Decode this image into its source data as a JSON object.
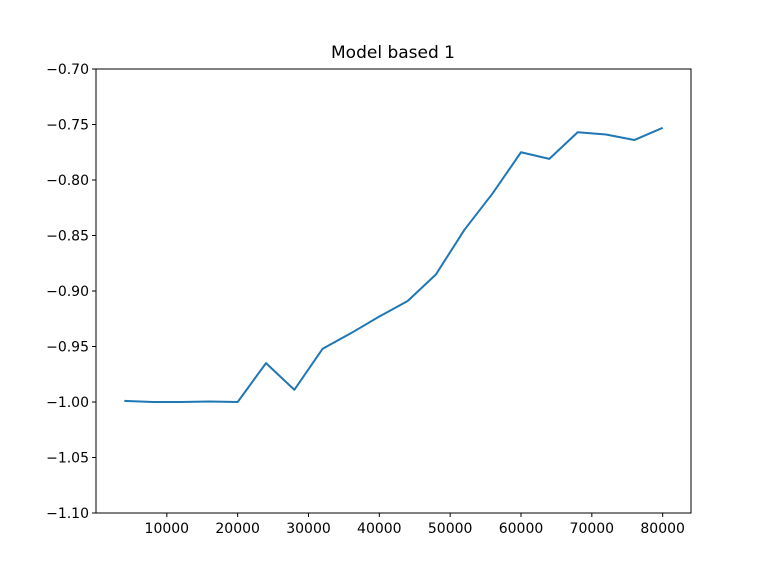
{
  "chart_data": {
    "type": "line",
    "title": "Model based 1",
    "xlabel": "",
    "ylabel": "",
    "xlim": [
      0,
      84000
    ],
    "ylim": [
      -1.1,
      -0.7
    ],
    "grid": false,
    "x_ticks": [
      {
        "value": 10000,
        "label": "10000"
      },
      {
        "value": 20000,
        "label": "20000"
      },
      {
        "value": 30000,
        "label": "30000"
      },
      {
        "value": 40000,
        "label": "40000"
      },
      {
        "value": 50000,
        "label": "50000"
      },
      {
        "value": 60000,
        "label": "60000"
      },
      {
        "value": 70000,
        "label": "70000"
      },
      {
        "value": 80000,
        "label": "80000"
      }
    ],
    "y_ticks": [
      {
        "value": -0.7,
        "label": "−0.70"
      },
      {
        "value": -0.75,
        "label": "−0.75"
      },
      {
        "value": -0.8,
        "label": "−0.80"
      },
      {
        "value": -0.85,
        "label": "−0.85"
      },
      {
        "value": -0.9,
        "label": "−0.90"
      },
      {
        "value": -0.95,
        "label": "−0.95"
      },
      {
        "value": -1.0,
        "label": "−1.00"
      },
      {
        "value": -1.05,
        "label": "−1.05"
      },
      {
        "value": -1.1,
        "label": "−1.10"
      }
    ],
    "series": [
      {
        "color": "#1f77b4",
        "x": [
          4000,
          8000,
          12000,
          16000,
          20000,
          24000,
          28000,
          32000,
          36000,
          40000,
          44000,
          48000,
          52000,
          56000,
          60000,
          64000,
          68000,
          72000,
          76000,
          80000
        ],
        "y": [
          -0.999,
          -1.0,
          -1.0,
          -0.9995,
          -1.0,
          -0.965,
          -0.989,
          -0.952,
          -0.938,
          -0.923,
          -0.909,
          -0.885,
          -0.845,
          -0.812,
          -0.775,
          -0.781,
          -0.757,
          -0.759,
          -0.764,
          -0.753
        ]
      }
    ]
  }
}
